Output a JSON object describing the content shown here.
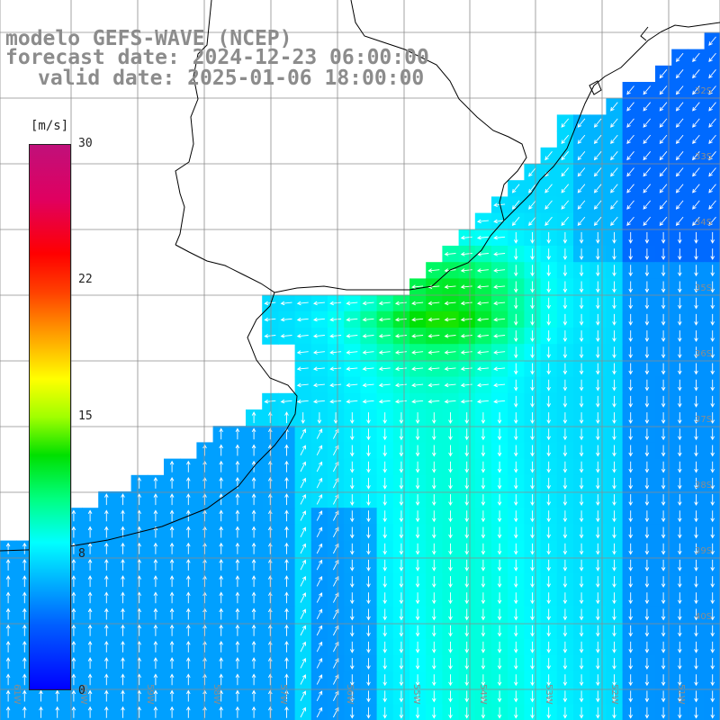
{
  "header": {
    "model": "modelo GEFS-WAVE (NCEP)",
    "forecast": "forecast date: 2024-12-23 06:00:00",
    "valid": "valid date: 2025-01-06 18:00:00"
  },
  "colorbar": {
    "unit": "[m/s]",
    "ticks": [
      "30",
      "22",
      "15",
      "8",
      "0"
    ],
    "range": [
      0,
      30
    ],
    "colors": [
      "#0000ff",
      "#0060ff",
      "#00b4ff",
      "#00ffff",
      "#00ff80",
      "#00e000",
      "#a0ff00",
      "#ffff00",
      "#ffa000",
      "#ff4000",
      "#ff0000",
      "#e00060",
      "#c0107a"
    ]
  },
  "grid_labels": {
    "lat": [
      "32S",
      "33S",
      "34S",
      "35S",
      "36S",
      "37S",
      "38S",
      "39S",
      "40S"
    ],
    "lon": [
      "61W",
      "60W",
      "59W",
      "58W",
      "57W",
      "56W",
      "55W",
      "54W",
      "53W",
      "52W",
      "51W"
    ]
  },
  "colors": {
    "land": "#ffffff",
    "coast": "#000000",
    "grid": "#8c8c8c",
    "arrow": "#ffffff",
    "header_text": "#8c8c8c"
  }
}
